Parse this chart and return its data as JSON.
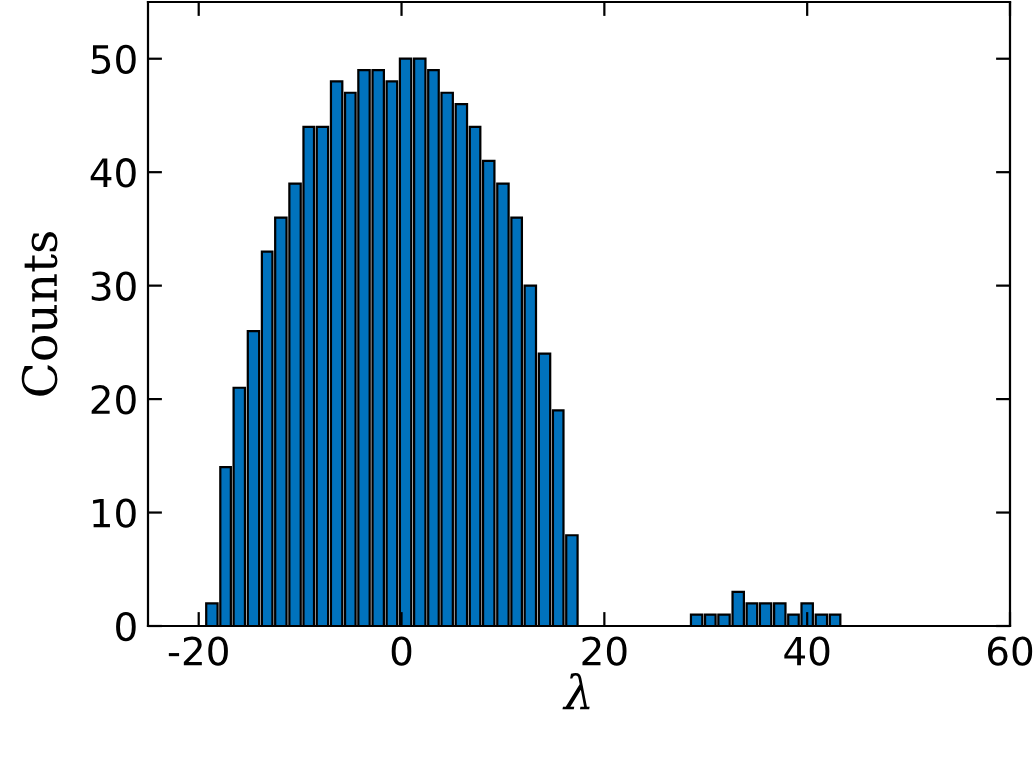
{
  "chart_data": {
    "type": "histogram",
    "xlabel": "λ",
    "ylabel": "Counts",
    "bins": [
      -19.4,
      -18.0,
      -16.7,
      -15.3,
      -13.9,
      -12.6,
      -11.2,
      -9.8,
      -8.5,
      -7.1,
      -5.7,
      -4.4,
      -3.0,
      -1.6,
      -0.3,
      1.1,
      2.5,
      3.8,
      5.2,
      6.6,
      7.9,
      9.3,
      10.7,
      12.0,
      13.4,
      14.8,
      16.1,
      17.5,
      28.4,
      29.8,
      31.1,
      32.5,
      33.9,
      35.2,
      36.6,
      38.0,
      39.3,
      40.7,
      42.1,
      43.4
    ],
    "values": [
      2,
      14,
      21,
      26,
      33,
      36,
      39,
      44,
      44,
      48,
      47,
      49,
      49,
      48,
      50,
      50,
      49,
      47,
      46,
      44,
      41,
      39,
      36,
      30,
      24,
      19,
      8,
      0,
      1,
      1,
      1,
      3,
      2,
      2,
      2,
      1,
      2,
      1,
      1
    ],
    "color": "#0072bd",
    "xlim": [
      -25,
      60
    ],
    "xticks": [
      -20,
      0,
      20,
      40,
      60
    ],
    "ylim": [
      0,
      55
    ],
    "yticks": [
      0,
      10,
      20,
      30,
      40,
      50
    ],
    "grid": false
  }
}
